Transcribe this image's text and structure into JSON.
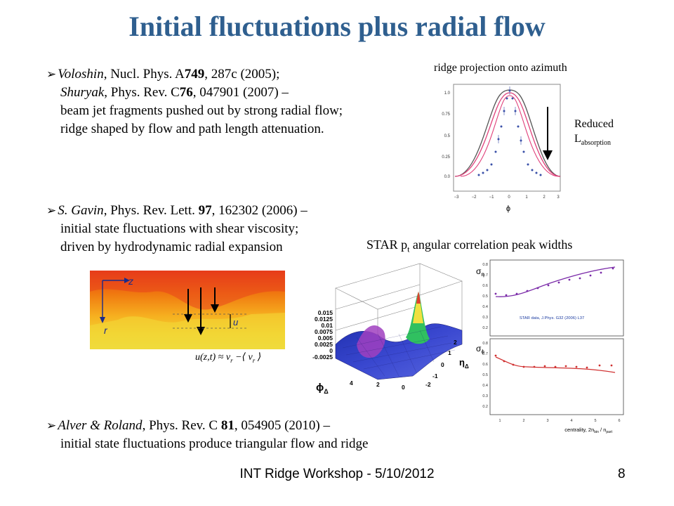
{
  "title": "Initial fluctuations plus radial flow",
  "refs": [
    {
      "author": "Voloshin",
      "line1_rest": ", Nucl. Phys. A",
      "line1_vol": "749",
      "line1_tail": ", 287c (2005);",
      "line2_author": "Shuryak",
      "line2_rest": ", Phys. Rev. C",
      "line2_vol": "76",
      "line2_tail": ", 047901 (2007) –",
      "line3": "beam jet fragments pushed out by strong radial flow;",
      "line4": "ridge shaped by flow and path length attenuation."
    },
    {
      "author": "S. Gavin",
      "line1_rest": ", Phys. Rev. Lett. ",
      "line1_vol": "97",
      "line1_tail": ", 162302 (2006) –",
      "line2": "initial state fluctuations with shear viscosity;",
      "line3": "driven by hydrodynamic radial expansion"
    },
    {
      "author": "Alver & Roland",
      "line1_rest": ", Phys. Rev. C ",
      "line1_vol": "81",
      "line1_tail": ", 054905 (2010) –",
      "line2": "initial state fluctuations produce triangular flow and ridge"
    }
  ],
  "ridge_plot": {
    "caption": "ridge projection onto azimuth",
    "reduced": "Reduced",
    "labs_main": "L",
    "labs_sub": "absorption",
    "y_ticks": [
      "1.0",
      "0.75",
      "0.5",
      "0.25",
      "0.0"
    ],
    "x_ticks": [
      "−3",
      "−2",
      "−1",
      "0",
      "1",
      "2",
      "3"
    ],
    "x_label": "ϕ"
  },
  "star": {
    "caption_pre": "STAR p",
    "caption_sub": "t",
    "caption_post": " angular correlation peak widths",
    "sigma_eta": "σ",
    "sigma_eta_sub": "η",
    "sigma_phi": "σ",
    "sigma_phi_sub": "ϕ",
    "data_label": "STAR data, J.Phys. G32 (2006) L37",
    "top_y_ticks": [
      "0.8",
      "0.7",
      "0.6",
      "0.5",
      "0.4",
      "0.3",
      "0.2"
    ],
    "bot_y_ticks": [
      "0.8",
      "0.7",
      "0.6",
      "0.5",
      "0.4",
      "0.3",
      "0.2"
    ],
    "x_ticks": [
      "1",
      "2",
      "3",
      "4",
      "5",
      "6"
    ],
    "x_label": "centrality, 2n",
    "x_label_sub1": "bin",
    "x_label_mid": " / n",
    "x_label_sub2": "part"
  },
  "flow_fig": {
    "z": "z",
    "r": "r",
    "u": "u",
    "formula": "u(z,t) ≈ v",
    "formula_sub1": "r",
    "formula_mid": " −⟨ v",
    "formula_sub2": "r",
    "formula_end": " ⟩"
  },
  "surface": {
    "z_ticks": [
      "0.015",
      "0.0125",
      "0.01",
      "0.0075",
      "0.005",
      "0.0025",
      "0",
      "-0.0025"
    ],
    "phi_label": "ϕ",
    "phi_sub": "Δ",
    "eta_label": "η",
    "eta_sub": "Δ",
    "phi_ticks": [
      "4",
      "2",
      "0"
    ],
    "eta_ticks": [
      "2",
      "1",
      "0",
      "-1",
      "-2"
    ]
  },
  "footer": "INT Ridge Workshop - 5/10/2012",
  "page_number": "8",
  "colors": {
    "title": "#2f5f8f",
    "pink_curve": "#e0407a",
    "grey_curve": "#555555",
    "points": "#3a50a8",
    "star_red": "#d03030",
    "star_purple": "#7a2aa8"
  }
}
